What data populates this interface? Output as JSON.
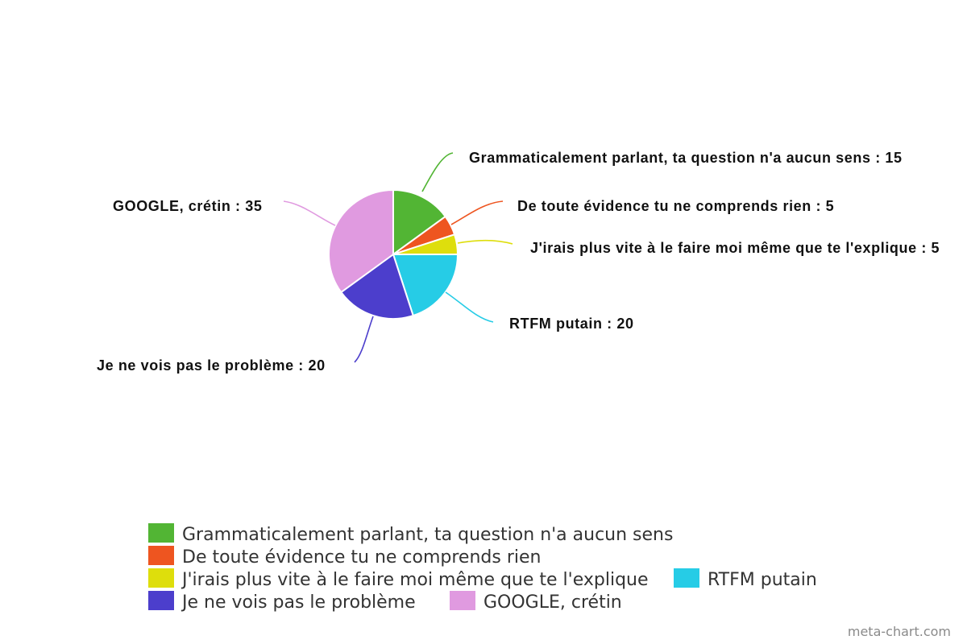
{
  "chart_data": {
    "type": "pie",
    "slices": [
      {
        "label": "Grammaticalement parlant, ta question n'a aucun sens",
        "value": 15,
        "display": "Grammaticalement parlant, ta question n'a aucun sens : 15",
        "color": "#52b534"
      },
      {
        "label": "De toute évidence tu ne comprends rien",
        "value": 5,
        "display": "De toute évidence tu ne comprends rien : 5",
        "color": "#ee5520"
      },
      {
        "label": "J'irais plus vite à le faire moi même que te l'explique",
        "value": 5,
        "display": "J'irais plus vite à le faire moi même que te l'explique : 5",
        "color": "#dede0c"
      },
      {
        "label": "RTFM putain",
        "value": 20,
        "display": "RTFM putain : 20",
        "color": "#26cce6"
      },
      {
        "label": "Je ne vois pas le problème",
        "value": 20,
        "display": "Je ne vois pas le problème : 20",
        "color": "#4c3ecc"
      },
      {
        "label": "GOOGLE, crétin",
        "value": 35,
        "display": "GOOGLE, crétin : 35",
        "color": "#e09ae0"
      }
    ],
    "legend_position": "bottom"
  },
  "credit": "meta-chart.com"
}
